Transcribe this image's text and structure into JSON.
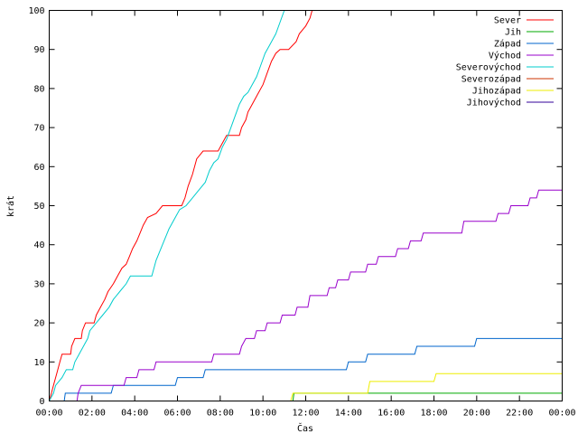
{
  "chart_data": {
    "type": "line",
    "title": "",
    "xlabel": "Čas",
    "ylabel": "krát",
    "xlim": [
      0,
      24
    ],
    "ylim": [
      0,
      100
    ],
    "x_ticks": [
      {
        "value": 0,
        "label": "00:00"
      },
      {
        "value": 2,
        "label": "02:00"
      },
      {
        "value": 4,
        "label": "04:00"
      },
      {
        "value": 6,
        "label": "06:00"
      },
      {
        "value": 8,
        "label": "08:00"
      },
      {
        "value": 10,
        "label": "10:00"
      },
      {
        "value": 12,
        "label": "12:00"
      },
      {
        "value": 14,
        "label": "14:00"
      },
      {
        "value": 16,
        "label": "16:00"
      },
      {
        "value": 18,
        "label": "18:00"
      },
      {
        "value": 20,
        "label": "20:00"
      },
      {
        "value": 22,
        "label": "22:00"
      },
      {
        "value": 24,
        "label": "00:00"
      }
    ],
    "y_ticks": [
      0,
      10,
      20,
      30,
      40,
      50,
      60,
      70,
      80,
      90,
      100
    ],
    "grid": false,
    "legend_position": "top-right",
    "series": [
      {
        "name": "Sever",
        "color": "#ff0000",
        "points": [
          [
            0.0,
            0
          ],
          [
            0.1,
            2
          ],
          [
            0.2,
            4
          ],
          [
            0.35,
            7
          ],
          [
            0.5,
            10
          ],
          [
            0.6,
            12
          ],
          [
            1.0,
            12
          ],
          [
            1.05,
            14
          ],
          [
            1.2,
            16
          ],
          [
            1.5,
            16
          ],
          [
            1.55,
            18
          ],
          [
            1.7,
            20
          ],
          [
            2.1,
            20
          ],
          [
            2.2,
            22
          ],
          [
            2.4,
            24
          ],
          [
            2.6,
            26
          ],
          [
            2.75,
            28
          ],
          [
            3.0,
            30
          ],
          [
            3.2,
            32
          ],
          [
            3.4,
            34
          ],
          [
            3.6,
            35
          ],
          [
            3.75,
            37
          ],
          [
            3.9,
            39
          ],
          [
            4.1,
            41
          ],
          [
            4.25,
            43
          ],
          [
            4.4,
            45
          ],
          [
            4.6,
            47
          ],
          [
            5.0,
            48
          ],
          [
            5.3,
            50
          ],
          [
            6.2,
            50
          ],
          [
            6.35,
            52
          ],
          [
            6.5,
            55
          ],
          [
            6.7,
            58
          ],
          [
            6.9,
            62
          ],
          [
            7.2,
            64
          ],
          [
            7.9,
            64
          ],
          [
            8.1,
            66
          ],
          [
            8.3,
            68
          ],
          [
            8.9,
            68
          ],
          [
            9.0,
            70
          ],
          [
            9.2,
            72
          ],
          [
            9.3,
            74
          ],
          [
            9.4,
            75
          ],
          [
            9.6,
            77
          ],
          [
            9.8,
            79
          ],
          [
            10.0,
            81
          ],
          [
            10.2,
            84
          ],
          [
            10.4,
            87
          ],
          [
            10.6,
            89
          ],
          [
            10.8,
            90
          ],
          [
            11.2,
            90
          ],
          [
            11.55,
            92
          ],
          [
            11.7,
            94
          ],
          [
            12.0,
            96
          ],
          [
            12.2,
            98
          ],
          [
            12.3,
            100
          ]
        ]
      },
      {
        "name": "Jih",
        "color": "#00aa00",
        "points": [
          [
            11.4,
            0
          ],
          [
            11.45,
            2
          ],
          [
            24.0,
            2
          ]
        ]
      },
      {
        "name": "Západ",
        "color": "#0066cc",
        "points": [
          [
            0.7,
            0
          ],
          [
            0.75,
            2
          ],
          [
            2.9,
            2
          ],
          [
            3.0,
            4
          ],
          [
            5.9,
            4
          ],
          [
            6.0,
            6
          ],
          [
            7.2,
            6
          ],
          [
            7.3,
            8
          ],
          [
            13.9,
            8
          ],
          [
            14.0,
            10
          ],
          [
            14.8,
            10
          ],
          [
            14.9,
            12
          ],
          [
            17.1,
            12
          ],
          [
            17.2,
            14
          ],
          [
            19.9,
            14
          ],
          [
            20.0,
            16
          ],
          [
            24.0,
            16
          ]
        ]
      },
      {
        "name": "Východ",
        "color": "#9900cc",
        "points": [
          [
            1.3,
            0
          ],
          [
            1.35,
            2
          ],
          [
            1.5,
            4
          ],
          [
            3.5,
            4
          ],
          [
            3.6,
            6
          ],
          [
            4.1,
            6
          ],
          [
            4.2,
            8
          ],
          [
            4.9,
            8
          ],
          [
            5.0,
            10
          ],
          [
            7.6,
            10
          ],
          [
            7.7,
            12
          ],
          [
            8.9,
            12
          ],
          [
            9.0,
            14
          ],
          [
            9.2,
            16
          ],
          [
            9.6,
            16
          ],
          [
            9.7,
            18
          ],
          [
            10.1,
            18
          ],
          [
            10.2,
            20
          ],
          [
            10.8,
            20
          ],
          [
            10.9,
            22
          ],
          [
            11.5,
            22
          ],
          [
            11.6,
            24
          ],
          [
            12.1,
            24
          ],
          [
            12.2,
            27
          ],
          [
            13.0,
            27
          ],
          [
            13.1,
            29
          ],
          [
            13.4,
            29
          ],
          [
            13.5,
            31
          ],
          [
            14.0,
            31
          ],
          [
            14.1,
            33
          ],
          [
            14.8,
            33
          ],
          [
            14.9,
            35
          ],
          [
            15.3,
            35
          ],
          [
            15.4,
            37
          ],
          [
            16.2,
            37
          ],
          [
            16.3,
            39
          ],
          [
            16.8,
            39
          ],
          [
            16.9,
            41
          ],
          [
            17.4,
            41
          ],
          [
            17.5,
            43
          ],
          [
            19.3,
            43
          ],
          [
            19.4,
            46
          ],
          [
            20.9,
            46
          ],
          [
            21.0,
            48
          ],
          [
            21.5,
            48
          ],
          [
            21.6,
            50
          ],
          [
            22.4,
            50
          ],
          [
            22.5,
            52
          ],
          [
            22.8,
            52
          ],
          [
            22.9,
            54
          ],
          [
            24.0,
            54
          ]
        ]
      },
      {
        "name": "Severovýchod",
        "color": "#00cccc",
        "points": [
          [
            0.0,
            0
          ],
          [
            0.2,
            2
          ],
          [
            0.3,
            4
          ],
          [
            0.6,
            6
          ],
          [
            0.8,
            8
          ],
          [
            1.1,
            8
          ],
          [
            1.2,
            10
          ],
          [
            1.4,
            12
          ],
          [
            1.6,
            14
          ],
          [
            1.8,
            16
          ],
          [
            1.9,
            18
          ],
          [
            2.2,
            20
          ],
          [
            2.5,
            22
          ],
          [
            2.8,
            24
          ],
          [
            3.0,
            26
          ],
          [
            3.3,
            28
          ],
          [
            3.6,
            30
          ],
          [
            3.8,
            32
          ],
          [
            4.8,
            32
          ],
          [
            5.0,
            36
          ],
          [
            5.3,
            40
          ],
          [
            5.6,
            44
          ],
          [
            5.9,
            47
          ],
          [
            6.1,
            49
          ],
          [
            6.4,
            50
          ],
          [
            6.7,
            52
          ],
          [
            7.0,
            54
          ],
          [
            7.3,
            56
          ],
          [
            7.5,
            59
          ],
          [
            7.7,
            61
          ],
          [
            7.9,
            62
          ],
          [
            8.1,
            65
          ],
          [
            8.3,
            67
          ],
          [
            8.5,
            70
          ],
          [
            8.7,
            73
          ],
          [
            8.9,
            76
          ],
          [
            9.1,
            78
          ],
          [
            9.3,
            79
          ],
          [
            9.5,
            81
          ],
          [
            9.7,
            83
          ],
          [
            9.9,
            86
          ],
          [
            10.1,
            89
          ],
          [
            10.3,
            91
          ],
          [
            10.6,
            94
          ],
          [
            10.8,
            97
          ],
          [
            11.0,
            100
          ]
        ]
      },
      {
        "name": "Severozápad",
        "color": "#cc3300",
        "points": []
      },
      {
        "name": "Jihozápad",
        "color": "#eeee00",
        "points": [
          [
            11.3,
            0
          ],
          [
            11.4,
            2
          ],
          [
            14.9,
            2
          ],
          [
            15.0,
            5
          ],
          [
            18.0,
            5
          ],
          [
            18.1,
            7
          ],
          [
            24.0,
            7
          ]
        ]
      },
      {
        "name": "Jihovýchod",
        "color": "#330099",
        "points": []
      }
    ]
  }
}
